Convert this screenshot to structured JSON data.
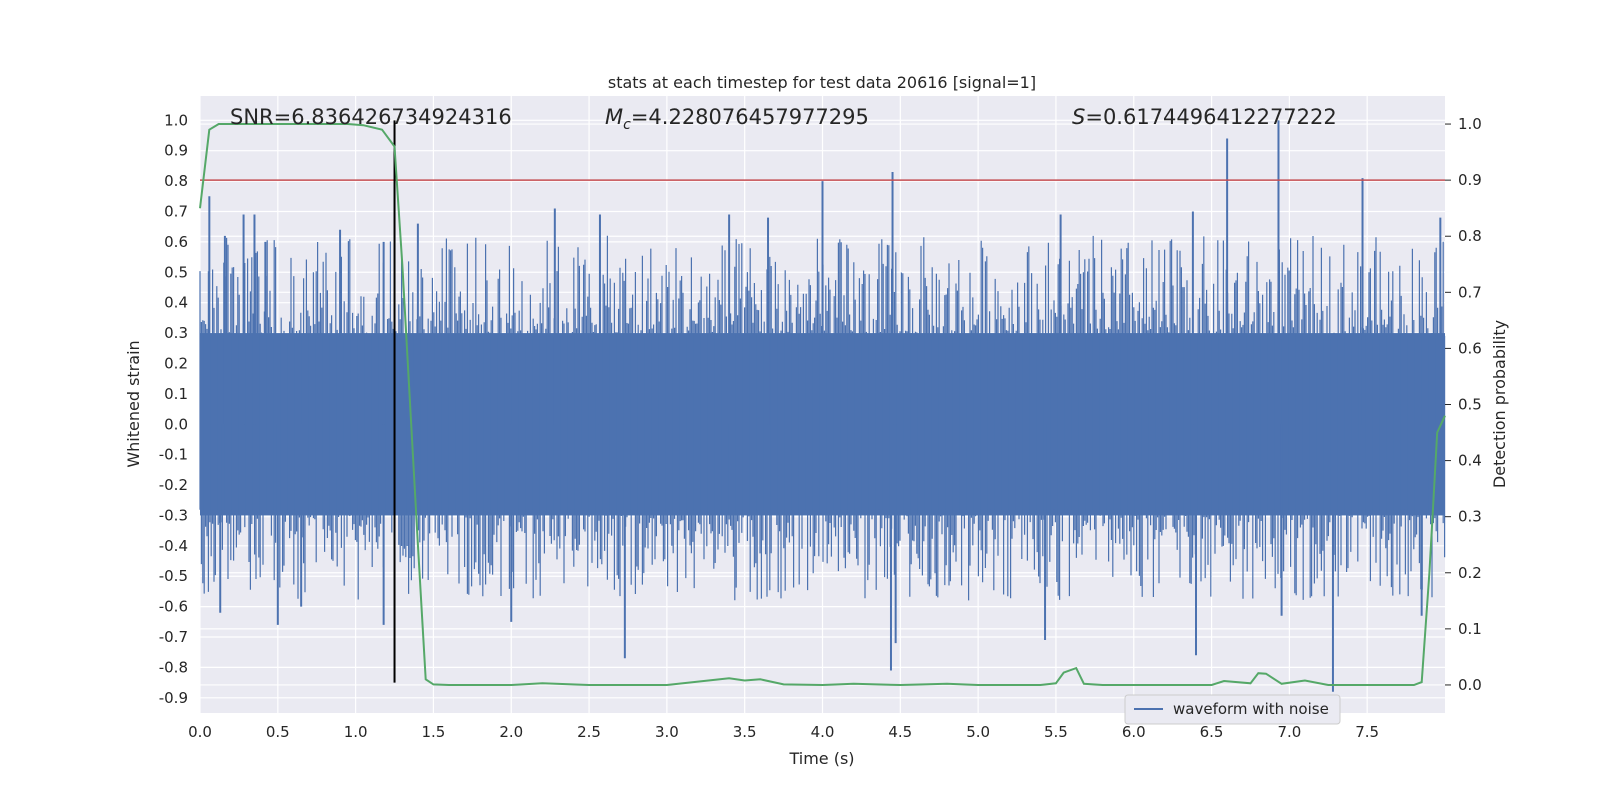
{
  "chart_data": {
    "type": "line",
    "title": "stats at each timestep for test data 20616 [signal=1]",
    "xlabel": "Time (s)",
    "ylabel_left": "Whitened strain",
    "ylabel_right": "Detection probability",
    "xlim": [
      0.0,
      8.0
    ],
    "ylim_left": [
      -0.95,
      1.08
    ],
    "ylim_right": [
      -0.05,
      1.05
    ],
    "x_ticks": [
      "0.0",
      "0.5",
      "1.0",
      "1.5",
      "2.0",
      "2.5",
      "3.0",
      "3.5",
      "4.0",
      "4.5",
      "5.0",
      "5.5",
      "6.0",
      "6.5",
      "7.0",
      "7.5"
    ],
    "y_left_ticks": [
      "1.0",
      "0.9",
      "0.8",
      "0.7",
      "0.6",
      "0.5",
      "0.4",
      "0.3",
      "0.2",
      "0.1",
      "0.0",
      "-0.1",
      "-0.2",
      "-0.3",
      "-0.4",
      "-0.5",
      "-0.6",
      "-0.7",
      "-0.8",
      "-0.9"
    ],
    "y_right_ticks": [
      "1.0",
      "0.9",
      "0.8",
      "0.7",
      "0.6",
      "0.5",
      "0.4",
      "0.3",
      "0.2",
      "0.1",
      "0.0"
    ],
    "grid": true,
    "annotations": {
      "snr": "SNR=6.836426734924316",
      "mc_symbol": "M",
      "mc_subscript": "c",
      "mc_value": "=4.228076457977295",
      "s_symbol": "S",
      "s_value": "=0.6174496412277222"
    },
    "threshold_line": {
      "y_right": 0.9,
      "color": "#c44e52"
    },
    "marker_line": {
      "x": 1.25,
      "color": "#000000"
    },
    "legend": {
      "label": "waveform with noise",
      "placement": "lower-right"
    },
    "series": [
      {
        "name": "waveform with noise",
        "axis": "left",
        "color": "#4c72b0",
        "noise_band": [
          -0.3,
          0.3
        ],
        "spikes": [
          {
            "x": 0.06,
            "y": 0.75
          },
          {
            "x": 0.16,
            "y": 0.62
          },
          {
            "x": 0.28,
            "y": 0.69
          },
          {
            "x": 0.35,
            "y": 0.69
          },
          {
            "x": 0.42,
            "y": 0.6
          },
          {
            "x": 0.9,
            "y": 0.64
          },
          {
            "x": 1.18,
            "y": 0.6
          },
          {
            "x": 1.4,
            "y": 0.66
          },
          {
            "x": 2.28,
            "y": 0.71
          },
          {
            "x": 2.57,
            "y": 0.69
          },
          {
            "x": 3.4,
            "y": 0.69
          },
          {
            "x": 3.65,
            "y": 0.68
          },
          {
            "x": 4.0,
            "y": 0.8
          },
          {
            "x": 4.45,
            "y": 0.83
          },
          {
            "x": 5.53,
            "y": 0.69
          },
          {
            "x": 6.38,
            "y": 0.7
          },
          {
            "x": 6.6,
            "y": 0.94
          },
          {
            "x": 6.93,
            "y": 1.0
          },
          {
            "x": 7.47,
            "y": 0.81
          },
          {
            "x": 7.97,
            "y": 0.68
          },
          {
            "x": 0.13,
            "y": -0.62
          },
          {
            "x": 0.5,
            "y": -0.66
          },
          {
            "x": 0.65,
            "y": -0.6
          },
          {
            "x": 1.18,
            "y": -0.66
          },
          {
            "x": 2.0,
            "y": -0.65
          },
          {
            "x": 2.73,
            "y": -0.77
          },
          {
            "x": 4.44,
            "y": -0.81
          },
          {
            "x": 4.47,
            "y": -0.72
          },
          {
            "x": 5.43,
            "y": -0.71
          },
          {
            "x": 6.4,
            "y": -0.76
          },
          {
            "x": 6.95,
            "y": -0.63
          },
          {
            "x": 7.28,
            "y": -0.88
          },
          {
            "x": 7.85,
            "y": -0.63
          }
        ]
      },
      {
        "name": "",
        "axis": "right",
        "color": "#55a868",
        "x": [
          0.0,
          0.06,
          0.12,
          0.5,
          0.8,
          0.95,
          1.05,
          1.17,
          1.25,
          1.3,
          1.4,
          1.45,
          1.5,
          1.6,
          2.0,
          2.2,
          2.5,
          3.0,
          3.2,
          3.4,
          3.5,
          3.6,
          3.75,
          4.0,
          4.2,
          4.5,
          4.8,
          5.0,
          5.4,
          5.5,
          5.55,
          5.63,
          5.68,
          5.8,
          6.0,
          6.5,
          6.58,
          6.75,
          6.8,
          6.85,
          6.95,
          7.1,
          7.25,
          7.5,
          7.8,
          7.85,
          7.9,
          7.95,
          8.0
        ],
        "y": [
          0.85,
          0.99,
          1.0,
          1.0,
          1.0,
          1.0,
          0.998,
          0.99,
          0.96,
          0.75,
          0.25,
          0.01,
          0.001,
          0.0,
          0.0,
          0.003,
          0.0,
          0.0,
          0.006,
          0.012,
          0.008,
          0.01,
          0.001,
          0.0,
          0.002,
          0.0,
          0.002,
          0.0,
          0.0,
          0.003,
          0.022,
          0.03,
          0.002,
          0.0,
          0.0,
          0.0,
          0.007,
          0.003,
          0.021,
          0.02,
          0.002,
          0.008,
          0.0,
          0.0,
          0.0,
          0.005,
          0.2,
          0.45,
          0.48
        ]
      }
    ]
  }
}
